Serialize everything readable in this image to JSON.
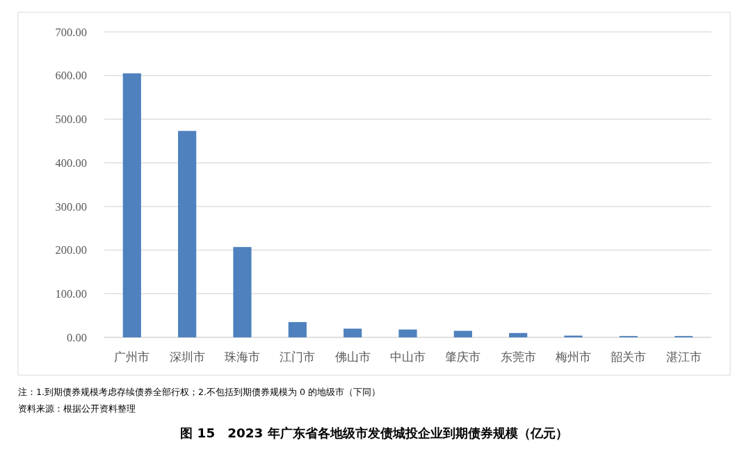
{
  "chart_data": {
    "type": "bar",
    "title": "图 15　2023 年广东省各地级市发债城投企业到期债券规模（亿元）",
    "categories": [
      "广州市",
      "深圳市",
      "珠海市",
      "江门市",
      "佛山市",
      "中山市",
      "肇庆市",
      "东莞市",
      "梅州市",
      "韶关市",
      "湛江市"
    ],
    "values": [
      605,
      473,
      207,
      35,
      20,
      18,
      15,
      10,
      4,
      3,
      3
    ],
    "color": "#4e81bd",
    "ylim": [
      0,
      700
    ],
    "yticks": [
      {
        "value": 0,
        "label": "0.00"
      },
      {
        "value": 100,
        "label": "100.00"
      },
      {
        "value": 200,
        "label": "200.00"
      },
      {
        "value": 300,
        "label": "300.00"
      },
      {
        "value": 400,
        "label": "400.00"
      },
      {
        "value": 500,
        "label": "500.00"
      },
      {
        "value": 600,
        "label": "600.00"
      },
      {
        "value": 700,
        "label": "700.00"
      }
    ],
    "grid": "y",
    "annotations": [
      "注：1.到期债券规模考虑存续债券全部行权；2.不包括到期债券规模为 0 的地级市（下同）",
      "资料来源：根据公开资料整理"
    ]
  }
}
